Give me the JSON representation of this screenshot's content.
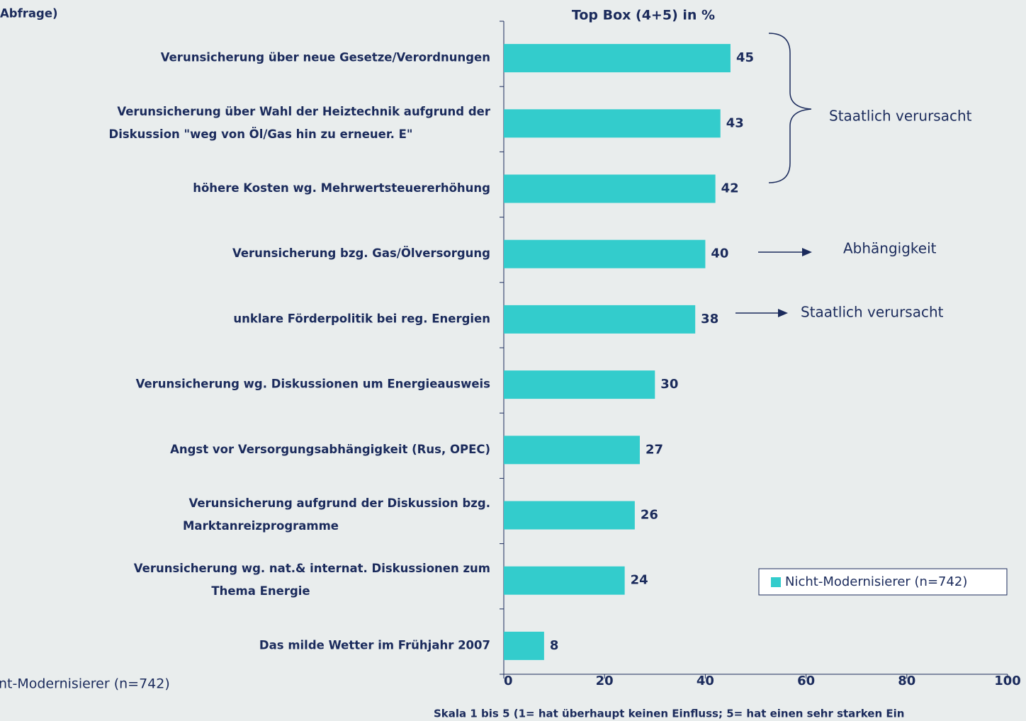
{
  "chart_data": {
    "type": "bar",
    "title": "Abfrage)",
    "subtitle": "Top Box (4+5) in %",
    "categories": [
      [
        "Verunsicherung über neue Gesetze/Verordnungen"
      ],
      [
        "Verunsicherung über Wahl der Heiztechnik aufgrund der",
        "Diskussion \"weg von Öl/Gas hin zu erneuer. E\""
      ],
      [
        "höhere Kosten wg. Mehrwertsteuererhöhung"
      ],
      [
        "Verunsicherung bzg. Gas/Ölversorgung"
      ],
      [
        "unklare Förderpolitik bei reg. Energien"
      ],
      [
        "Verunsicherung wg. Diskussionen um Energieausweis"
      ],
      [
        "Angst vor Versorgungsabhängigkeit (Rus, OPEC)"
      ],
      [
        "Verunsicherung aufgrund der Diskussion bzg.",
        "Marktanreizprogramme"
      ],
      [
        "Verunsicherung wg. nat.& internat. Diskussionen zum",
        "Thema Energie"
      ],
      [
        "Das milde Wetter im Frühjahr 2007"
      ]
    ],
    "series": [
      {
        "name": "Nicht-Modernisierer (n=742)",
        "color": "#33cccc",
        "values": [
          45,
          43,
          42,
          40,
          38,
          30,
          27,
          26,
          24,
          8
        ]
      }
    ],
    "xlim": [
      0,
      100
    ],
    "xticks": [
      0,
      20,
      40,
      60,
      80,
      100
    ],
    "xlabel": "Skala 1 bis 5 (1= hat überhaupt keinen Einfluss; 5= hat einen sehr starken Ein",
    "annotations": [
      "Staatlich verursacht",
      "Abhängigkeit",
      "Staatlich verursacht",
      "nt-Modernisierer (n=742)"
    ],
    "legend": "bottom-right"
  }
}
